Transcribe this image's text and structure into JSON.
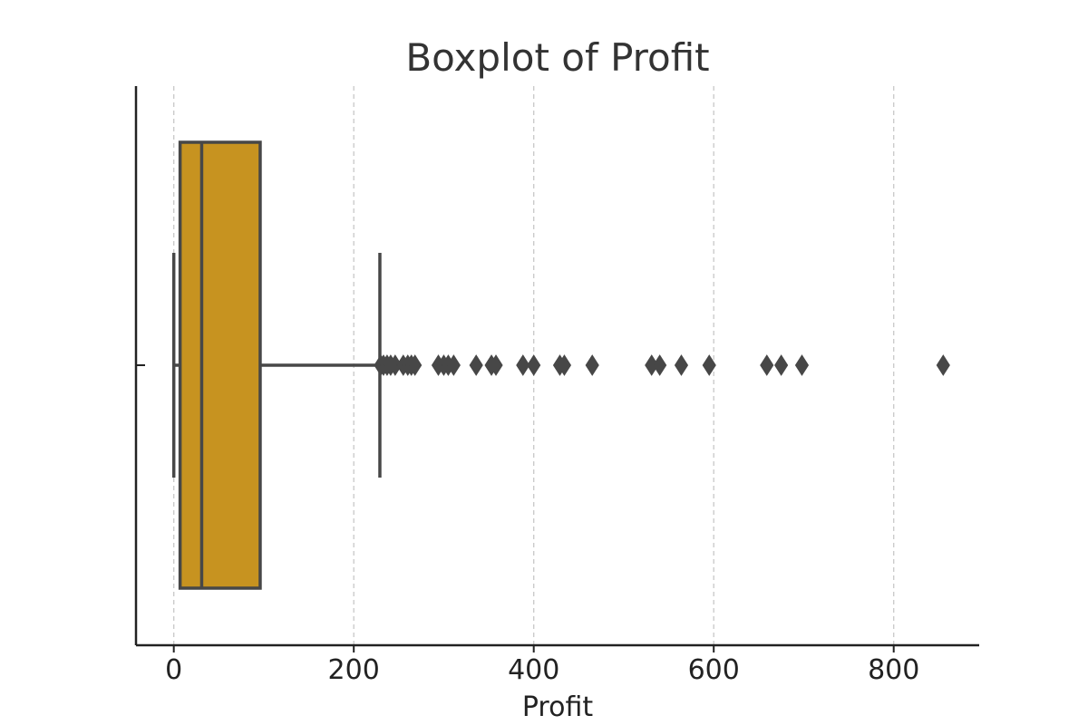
{
  "chart_data": {
    "type": "box",
    "title": "Boxplot of Profit",
    "xlabel": "Profit",
    "ylabel": "",
    "orientation": "horizontal",
    "xlim": [
      -42,
      895
    ],
    "xticks": [
      0,
      200,
      400,
      600,
      800
    ],
    "grid": {
      "x": true,
      "y": false,
      "style": "dashed"
    },
    "box": {
      "whisker_low": 0,
      "q1": 7,
      "median": 31,
      "q3": 96,
      "whisker_high": 229
    },
    "outliers": [
      230,
      233,
      237,
      241,
      246,
      255,
      260,
      264,
      268,
      294,
      300,
      305,
      311,
      336,
      353,
      358,
      388,
      400,
      429,
      434,
      465,
      531,
      540,
      564,
      595,
      659,
      675,
      698,
      855
    ],
    "colors": {
      "box_fill": "#C79320",
      "line": "#474747",
      "axis": "#222222",
      "grid": "#C8C8C8",
      "title": "#333333"
    }
  }
}
